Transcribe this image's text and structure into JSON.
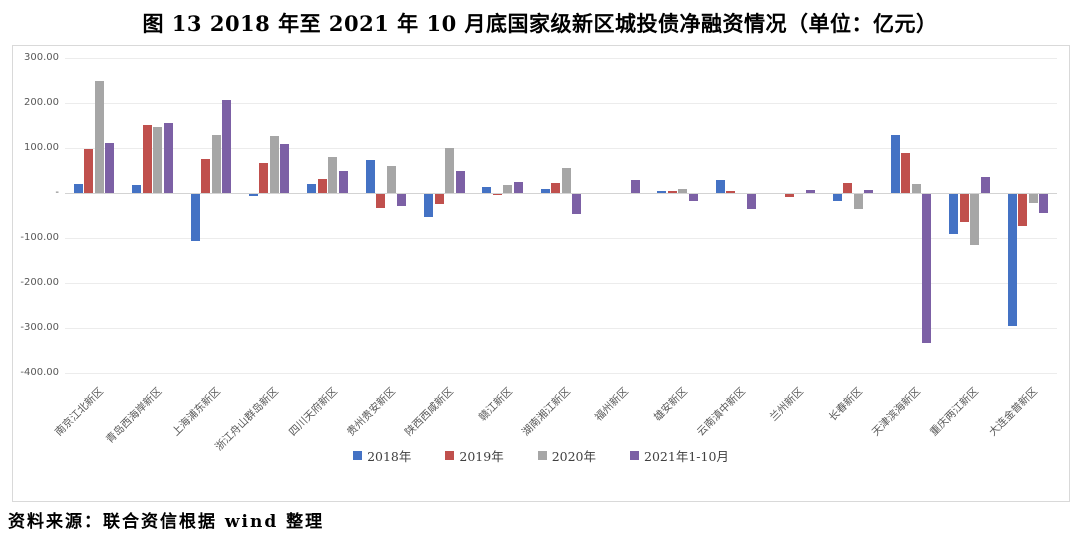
{
  "title": "图 13  2018 年至 2021 年 10 月底国家级新区城投债净融资情况（单位：亿元）",
  "source": "资料来源：联合资信根据 wind 整理",
  "chart_data": {
    "type": "bar",
    "unit": "亿元",
    "title": "2018年至2021年10月底国家级新区城投债净融资情况",
    "categories": [
      "南京江北新区",
      "青岛西海岸新区",
      "上海浦东新区",
      "浙江舟山群岛新区",
      "四川天府新区",
      "贵州贵安新区",
      "陕西西咸新区",
      "赣江新区",
      "湖南湘江新区",
      "福州新区",
      "雄安新区",
      "云南滇中新区",
      "兰州新区",
      "长春新区",
      "天津滨海新区",
      "重庆两江新区",
      "大连金普新区"
    ],
    "series": [
      {
        "name": "2018年",
        "color": "#4472C4",
        "values": [
          20,
          17,
          -105,
          -4,
          21,
          74,
          -52,
          14,
          10,
          0,
          5,
          28,
          0,
          -15,
          128,
          -88,
          -293
        ]
      },
      {
        "name": "2019年",
        "color": "#C0504D",
        "values": [
          97,
          151,
          75,
          67,
          31,
          -32,
          -23,
          -3,
          22,
          0,
          4,
          4,
          -6,
          22,
          88,
          -62,
          -70
        ]
      },
      {
        "name": "2020年",
        "color": "#A6A6A6",
        "values": [
          250,
          146,
          129,
          126,
          79,
          60,
          99,
          17,
          55,
          0,
          10,
          0,
          0,
          -33,
          20,
          -114,
          -20
        ]
      },
      {
        "name": "2021年1-10月",
        "color": "#7C60A5",
        "values": [
          112,
          155,
          207,
          108,
          50,
          -27,
          48,
          25,
          -45,
          28,
          -16,
          -33,
          7,
          7,
          -332,
          36,
          -42
        ]
      }
    ],
    "yticks": [
      {
        "label": "300.00",
        "value": 300
      },
      {
        "label": "200.00",
        "value": 200
      },
      {
        "label": "100.00",
        "value": 100
      },
      {
        "label": "-",
        "value": 0
      },
      {
        "label": "-100.00",
        "value": -100
      },
      {
        "label": "-200.00",
        "value": -200
      },
      {
        "label": "-300.00",
        "value": -300
      },
      {
        "label": "-400.00",
        "value": -400
      }
    ],
    "ylim": [
      -400,
      300
    ],
    "grid": true,
    "legend_position": "bottom"
  }
}
